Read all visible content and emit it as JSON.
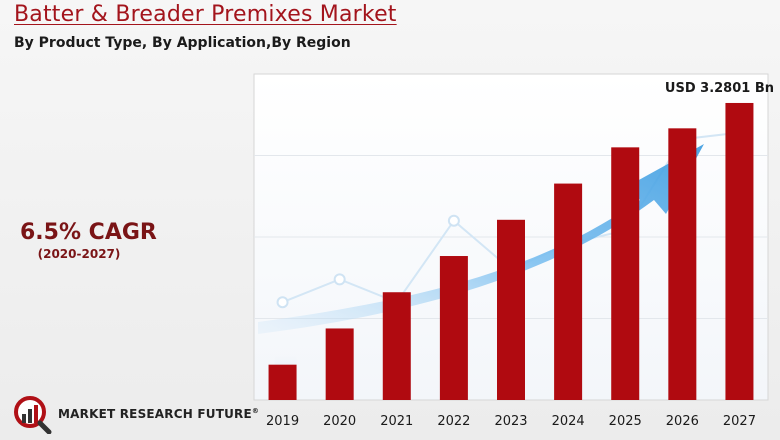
{
  "header": {
    "title": "Batter & Breader Premixes Market",
    "subtitle": "By Product Type, By Application,By Region"
  },
  "cagr": {
    "value": "6.5% CAGR",
    "period": "(2020-2027)"
  },
  "brand": {
    "name": "MARKET RESEARCH FUTURE",
    "mark": "®"
  },
  "colors": {
    "bar": "#b00a10",
    "arrow": "#5aaee8",
    "title": "#a3141c"
  },
  "chart_data": {
    "type": "bar",
    "title": "Batter & Breader Premixes Market",
    "categories": [
      "2019",
      "2020",
      "2021",
      "2022",
      "2023",
      "2024",
      "2025",
      "2026",
      "2027"
    ],
    "values": [
      0.39,
      0.79,
      1.19,
      1.59,
      1.99,
      2.39,
      2.79,
      3.0,
      3.2801
    ],
    "ylim": [
      0,
      3.6
    ],
    "annotation": "USD 3.2801 Bn",
    "xlabel": "",
    "ylabel": ""
  }
}
